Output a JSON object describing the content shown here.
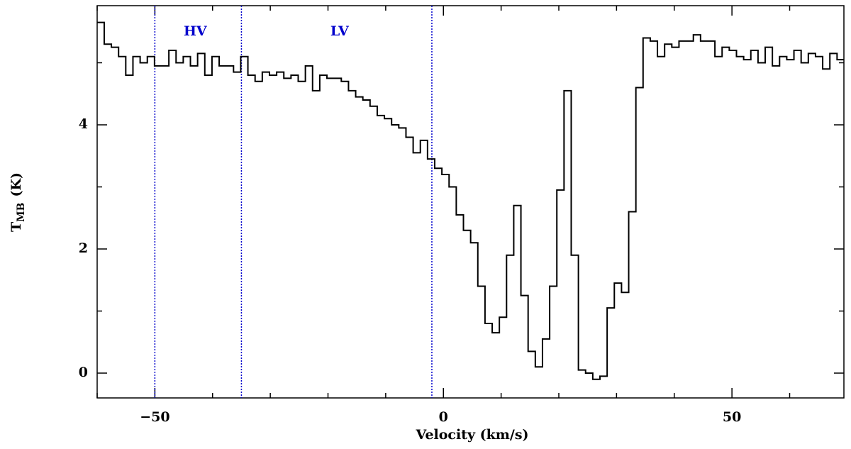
{
  "chart_data": {
    "type": "step",
    "xlabel": "Velocity (km/s)",
    "ylabel": "T",
    "ylabel_sub": "MB",
    "ylabel_unit": "(K)",
    "xlim": [
      -60,
      69.4
    ],
    "ylim": [
      -0.4,
      5.92
    ],
    "xticks": [
      {
        "value": -50,
        "label": "−50"
      },
      0,
      50
    ],
    "xminorticks": [
      -60,
      -40,
      -30,
      -20,
      -10,
      10,
      20,
      30,
      40,
      60
    ],
    "yticks": [
      0,
      2,
      4
    ],
    "yminorticks": [
      1,
      3,
      5
    ],
    "color": "#000000",
    "vlines": [
      -50,
      -35,
      -2
    ],
    "vline_color": "#0000cc",
    "annotations": [
      {
        "text": "HV",
        "x": -43,
        "y": 5.5
      },
      {
        "text": "LV",
        "x": -18,
        "y": 5.5
      }
    ],
    "x": [
      -59.4,
      -58.155,
      -56.91,
      -55.665,
      -54.42,
      -53.175,
      -51.93,
      -50.685,
      -49.44,
      -48.195,
      -46.95,
      -45.705,
      -44.46,
      -43.215,
      -41.97,
      -40.725,
      -39.48,
      -38.235,
      -36.99,
      -35.745,
      -34.5,
      -33.255,
      -32.01,
      -30.765,
      -29.52,
      -28.275,
      -27.03,
      -25.785,
      -24.54,
      -23.295,
      -22.05,
      -20.805,
      -19.56,
      -18.315,
      -17.07,
      -15.825,
      -14.58,
      -13.335,
      -12.09,
      -10.845,
      -9.6,
      -8.355,
      -7.11,
      -5.865,
      -4.62,
      -3.375,
      -2.13,
      -0.885,
      0.36,
      1.605,
      2.85,
      4.095,
      5.34,
      6.585,
      7.83,
      9.075,
      10.32,
      11.565,
      12.81,
      14.055,
      15.3,
      16.545,
      17.79,
      19.035,
      20.28,
      21.525,
      22.77,
      24.015,
      25.26,
      26.505,
      27.75,
      28.995,
      30.24,
      31.485,
      32.73,
      33.975,
      35.22,
      36.465,
      37.71,
      38.955,
      40.2,
      41.445,
      42.69,
      43.935,
      45.18,
      46.425,
      47.67,
      48.915,
      50.16,
      51.405,
      52.65,
      53.895,
      55.14,
      56.385,
      57.63,
      58.875,
      60.12,
      61.365,
      62.61,
      63.855,
      65.1,
      66.345,
      67.59,
      68.835
    ],
    "values": [
      5.65,
      5.3,
      5.25,
      5.1,
      4.8,
      5.1,
      5.0,
      5.1,
      4.95,
      4.95,
      5.2,
      5.0,
      5.1,
      4.95,
      5.15,
      4.8,
      5.1,
      4.95,
      4.95,
      4.85,
      5.1,
      4.8,
      4.7,
      4.85,
      4.8,
      4.85,
      4.75,
      4.8,
      4.7,
      4.95,
      4.55,
      4.8,
      4.75,
      4.75,
      4.7,
      4.55,
      4.45,
      4.4,
      4.3,
      4.15,
      4.1,
      4.0,
      3.95,
      3.8,
      3.55,
      3.75,
      3.45,
      3.3,
      3.2,
      3.0,
      2.55,
      2.3,
      2.1,
      1.4,
      0.8,
      0.65,
      0.9,
      1.9,
      2.7,
      1.25,
      0.35,
      0.1,
      0.55,
      1.4,
      2.95,
      4.55,
      1.9,
      0.05,
      0.0,
      -0.1,
      -0.05,
      1.05,
      1.45,
      1.3,
      2.6,
      4.6,
      5.4,
      5.35,
      5.1,
      5.3,
      5.25,
      5.35,
      5.35,
      5.45,
      5.35,
      5.35,
      5.1,
      5.25,
      5.2,
      5.1,
      5.05,
      5.2,
      5.0,
      5.25,
      4.95,
      5.1,
      5.05,
      5.2,
      5.0,
      5.15,
      5.1,
      4.9,
      5.15,
      5.05
    ]
  }
}
